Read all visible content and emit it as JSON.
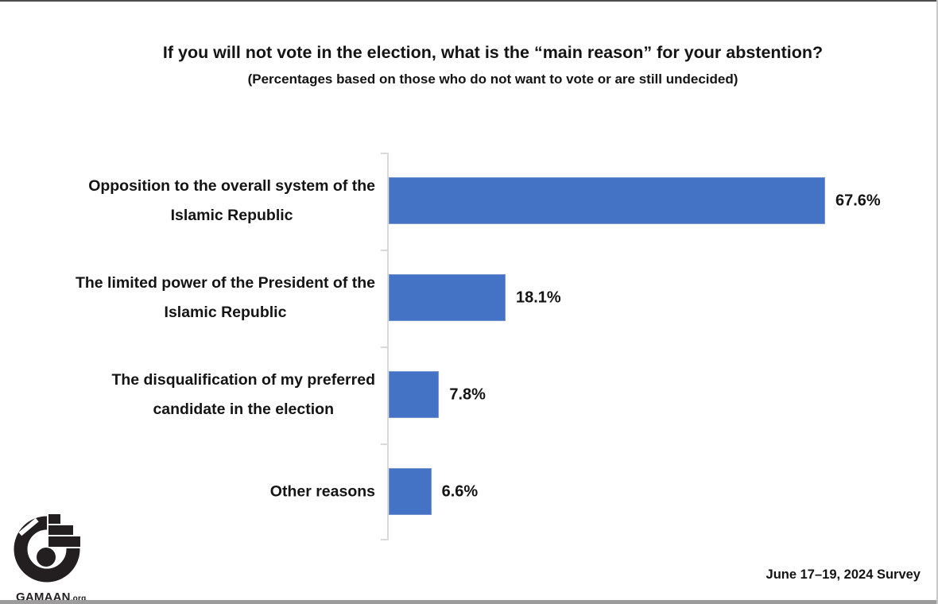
{
  "header": {
    "title": "If you will not vote in the election, what is the “main reason” for your abstention?",
    "subtitle": "(Percentages based on those who do not want to vote or are still undecided)"
  },
  "chart_data": {
    "type": "bar",
    "orientation": "horizontal",
    "title": "If you will not vote in the election, what is the “main reason” for your abstention?",
    "subtitle": "(Percentages based on those who do not want to vote or are still undecided)",
    "categories": [
      "Opposition to the overall system of the\nIslamic Republic",
      "The limited power of the President of the\nIslamic Republic",
      "The disqualification of my preferred\ncandidate in the election",
      "Other reasons"
    ],
    "values": [
      67.6,
      18.1,
      7.8,
      6.6
    ],
    "value_labels": [
      "67.6%",
      "18.1%",
      "7.8%",
      "6.6%"
    ],
    "xlim": [
      0,
      72.5
    ],
    "grid": false,
    "data_labels_position": "outside-end",
    "bar_color": "#4472C4",
    "axis_line_color": "#D9D9D9"
  },
  "footer": {
    "logo_text": "GAMAAN",
    "logo_suffix": ".org",
    "survey_note": "June 17–19, 2024 Survey"
  }
}
